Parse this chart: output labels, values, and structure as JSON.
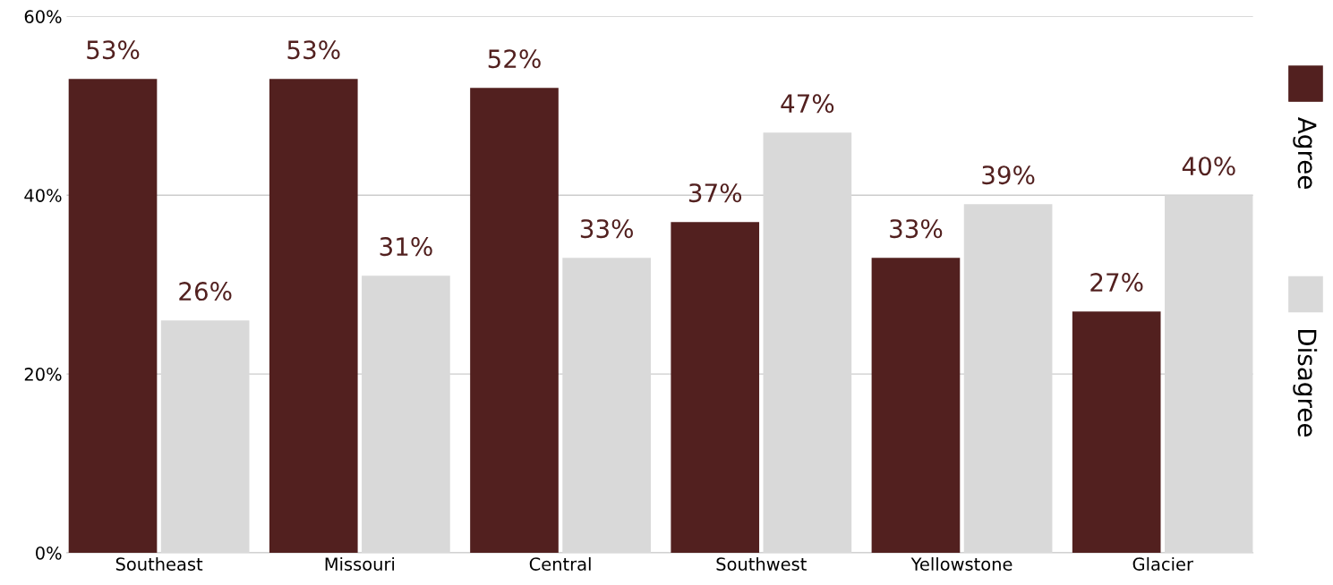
{
  "chart_data": {
    "type": "bar",
    "categories": [
      "Southeast",
      "Missouri",
      "Central",
      "Southwest",
      "Yellowstone",
      "Glacier"
    ],
    "series": [
      {
        "name": "Agree",
        "color": "#52201f",
        "values": [
          53,
          53,
          52,
          37,
          33,
          27
        ],
        "value_labels": [
          "53%",
          "53%",
          "52%",
          "37%",
          "33%",
          "27%"
        ]
      },
      {
        "name": "Disagree",
        "color": "#d9d9d9",
        "values": [
          26,
          31,
          33,
          47,
          39,
          40
        ],
        "value_labels": [
          "26%",
          "31%",
          "33%",
          "47%",
          "39%",
          "40%"
        ]
      }
    ],
    "ylim": [
      0,
      60
    ],
    "yticks": [
      {
        "value": 0,
        "label": "0%"
      },
      {
        "value": 20,
        "label": "20%"
      },
      {
        "value": 40,
        "label": "40%"
      },
      {
        "value": 60,
        "label": "60%"
      }
    ],
    "grid": "y",
    "legend": "right"
  }
}
